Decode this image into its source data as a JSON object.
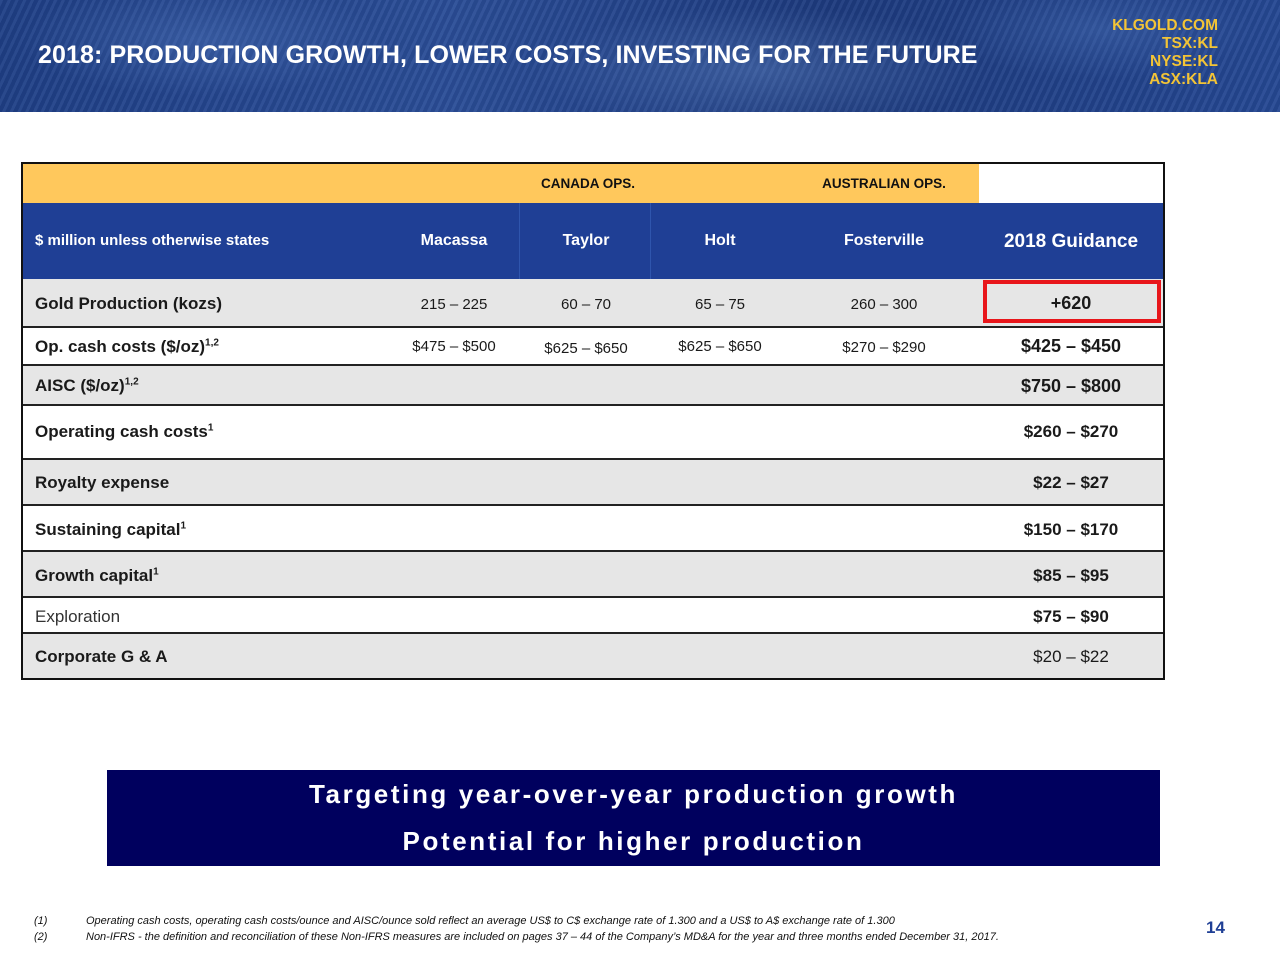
{
  "header": {
    "title": "2018: PRODUCTION GROWTH, LOWER COSTS, INVESTING FOR THE FUTURE",
    "tickers": [
      "KLGOLD.COM",
      "TSX:KL",
      "NYSE:KL",
      "ASX:KLA"
    ]
  },
  "table": {
    "ops_groups": {
      "canada": "CANADA OPS.",
      "australian": "AUSTRALIAN OPS."
    },
    "headers": {
      "metric": "$ million unless otherwise states",
      "macassa": "Macassa",
      "taylor": "Taylor",
      "holt": "Holt",
      "fosterville": "Fosterville",
      "guidance": "2018  Guidance"
    },
    "rows": [
      {
        "label": "Gold Production (kozs)",
        "sup": "",
        "macassa": "215 – 225",
        "taylor": "60 – 70",
        "holt": "65 – 75",
        "fosterville": "260 – 300",
        "guidance": "+620"
      },
      {
        "label": "Op. cash costs ($/oz)",
        "sup": "1,2",
        "macassa": "$475 – $500",
        "taylor": "$625 – $650",
        "holt": "$625 – $650",
        "fosterville": "$270 – $290",
        "guidance": "$425 – $450"
      },
      {
        "label": "AISC ($/oz)",
        "sup": "1,2",
        "guidance": "$750 – $800"
      },
      {
        "label": "Operating cash costs",
        "sup": "1",
        "guidance": "$260 – $270"
      },
      {
        "label": "Royalty expense",
        "sup": "",
        "guidance": "$22 – $27"
      },
      {
        "label": "Sustaining capital",
        "sup": "1",
        "guidance": "$150 – $170"
      },
      {
        "label": "Growth capital",
        "sup": "1",
        "guidance": "$85 – $95"
      },
      {
        "label": "Exploration",
        "sup": "",
        "guidance": "$75 – $90"
      },
      {
        "label": "Corporate G & A",
        "sup": "",
        "guidance": "$20 – $22"
      }
    ]
  },
  "callout": {
    "line1": "Targeting year-over-year production growth",
    "line2": "Potential for higher production"
  },
  "footnotes": [
    {
      "num": "(1)",
      "text": "Operating cash costs, operating cash costs/ounce and AISC/ounce sold reflect an average US$ to C$ exchange rate of 1.300 and a US$ to A$ exchange rate of 1.300"
    },
    {
      "num": "(2)",
      "text": "Non-IFRS - the definition and reconciliation of these Non-IFRS measures are included on pages 37 – 44 of the Company’s MD&A for the year and three months ended December 31, 2017."
    }
  ],
  "page_number": "14",
  "colors": {
    "banner": "#1f3f86",
    "ticker": "#f3c436",
    "ops_row": "#ffc85c",
    "table_header": "#1f3f95",
    "row_gray": "#e6e6e6",
    "highlight_border": "#e8161b",
    "callout": "#00005e"
  }
}
